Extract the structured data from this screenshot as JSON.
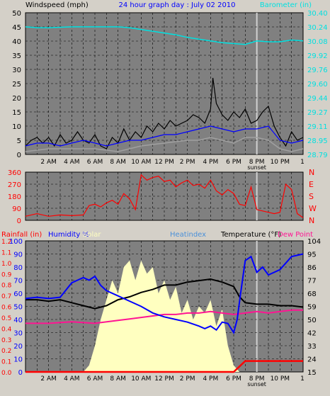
{
  "header": {
    "left_label": "Windspeed (mph)",
    "title": "24 hour graph day : July 02 2010",
    "right_label": "Barometer (in)"
  },
  "colors": {
    "background": "#d4d0c8",
    "plot_bg": "#808080",
    "grid": "#000000",
    "windspeed": "#000000",
    "wind_avg": "#0000ff",
    "gust_shadow": "#a0a0a0",
    "barometer": "#00e0e0",
    "wind_dir": "#ff0000",
    "humidity": "#0000ff",
    "solar": "#ffffc0",
    "heatindex": "#5b9bd5",
    "temperature": "#000000",
    "dewpoint": "#ff1493",
    "rainfall": "#ff0000"
  },
  "chart_data": [
    {
      "type": "line",
      "name": "wind-barometer",
      "left_axis": {
        "label": "Windspeed (mph)",
        "ticks": [
          0,
          5,
          10,
          15,
          20,
          25,
          30,
          35,
          40,
          45,
          50
        ],
        "range": [
          0,
          50
        ]
      },
      "right_axis": {
        "label": "Barometer (in)",
        "ticks": [
          "28.79",
          "28.95",
          "29.11",
          "29.27",
          "29.44",
          "29.60",
          "29.76",
          "29.92",
          "30.08",
          "30.24",
          "30.40"
        ],
        "range": [
          28.79,
          30.4
        ]
      },
      "x_ticks": [
        "2 AM",
        "4 AM",
        "6 AM",
        "8 AM",
        "10 AM",
        "12 PM",
        "2 PM",
        "4 PM",
        "6 PM",
        "8 PM",
        "10 PM"
      ],
      "x_end_label": "1",
      "sunset_label": "sunset",
      "x_range": [
        0,
        24
      ],
      "barometer": {
        "x": [
          0,
          1,
          2,
          4,
          6,
          8,
          9,
          10,
          11,
          12,
          13,
          14,
          15,
          16,
          17,
          18,
          19,
          20,
          21,
          22,
          23,
          24
        ],
        "values": [
          30.24,
          30.23,
          30.23,
          30.24,
          30.24,
          30.24,
          30.23,
          30.21,
          30.19,
          30.17,
          30.15,
          30.12,
          30.1,
          30.08,
          30.06,
          30.05,
          30.04,
          30.08,
          30.07,
          30.07,
          30.09,
          30.08
        ]
      },
      "windspeed": {
        "x": [
          0,
          0.5,
          1,
          1.5,
          2,
          2.5,
          3,
          3.5,
          4,
          4.5,
          5,
          5.5,
          6,
          6.5,
          7,
          7.5,
          8,
          8.5,
          9,
          9.5,
          10,
          10.5,
          11,
          11.5,
          12,
          12.5,
          13,
          13.5,
          14,
          14.5,
          15,
          15.5,
          16,
          16.2,
          16.5,
          17,
          17.5,
          18,
          18.5,
          19,
          19.5,
          20,
          20.5,
          21,
          21.5,
          22,
          22.5,
          23,
          23.5,
          24
        ],
        "values": [
          3,
          5,
          6,
          4,
          6,
          3,
          7,
          4,
          5,
          8,
          5,
          4,
          7,
          3,
          2,
          6,
          4,
          9,
          5,
          8,
          6,
          10,
          8,
          11,
          9,
          12,
          10,
          11,
          12,
          14,
          13,
          11,
          16,
          27,
          18,
          14,
          12,
          15,
          13,
          16,
          11,
          12,
          15,
          17,
          10,
          6,
          3,
          8,
          5,
          6
        ]
      },
      "wind_avg": {
        "x": [
          0,
          1,
          2,
          3,
          4,
          5,
          6,
          7,
          8,
          9,
          10,
          11,
          12,
          13,
          14,
          15,
          16,
          17,
          18,
          19,
          20,
          21,
          22,
          23,
          24
        ],
        "values": [
          3,
          4,
          4,
          3,
          4,
          5,
          4,
          3,
          4,
          5,
          5,
          6,
          7,
          7,
          8,
          9,
          10,
          9,
          8,
          9,
          9,
          10,
          5,
          4,
          5
        ]
      },
      "gust_shadow": {
        "x": [
          0,
          2,
          4,
          6,
          8,
          10,
          12,
          14,
          15,
          16,
          17,
          18,
          19,
          20,
          21,
          22,
          23,
          24
        ],
        "values": [
          1,
          2,
          2,
          2,
          1,
          3,
          4,
          5,
          5,
          6,
          5,
          4,
          6,
          6,
          5,
          2,
          1,
          2
        ]
      }
    },
    {
      "type": "scatter",
      "name": "wind-direction",
      "left_axis": {
        "ticks": [
          0,
          90,
          180,
          270,
          360
        ],
        "range": [
          0,
          360
        ]
      },
      "right_labels": [
        "N",
        "W",
        "S",
        "E",
        "N"
      ],
      "x_range": [
        0,
        24
      ],
      "wind_dir": {
        "x": [
          0,
          1,
          2,
          3,
          4,
          5,
          5.5,
          6,
          6.5,
          7,
          7.5,
          8,
          8.5,
          9,
          9.5,
          10,
          10.5,
          11,
          11.5,
          12,
          12.5,
          13,
          13.5,
          14,
          14.5,
          15,
          15.5,
          16,
          16.5,
          17,
          17.5,
          18,
          18.5,
          19,
          19.5,
          20,
          20.5,
          21,
          21.5,
          22,
          22.5,
          23,
          23.5,
          24
        ],
        "values": [
          30,
          50,
          30,
          40,
          35,
          40,
          110,
          120,
          100,
          130,
          150,
          120,
          200,
          160,
          80,
          340,
          300,
          320,
          330,
          290,
          300,
          250,
          280,
          300,
          260,
          270,
          240,
          300,
          220,
          190,
          230,
          200,
          120,
          110,
          250,
          80,
          70,
          60,
          50,
          60,
          270,
          230,
          50,
          20
        ]
      }
    },
    {
      "type": "line",
      "name": "temp-humidity",
      "rain_axis": {
        "label": "Rainfall (in)",
        "ticks": [
          "0.0",
          "0.1",
          "0.2",
          "0.3",
          "0.4",
          "0.5",
          "0.6",
          "0.7",
          "0.8",
          "0.9",
          "1.0",
          "1.1",
          "1.2"
        ]
      },
      "humidity_axis": {
        "label": "Humidity %",
        "ticks": [
          0,
          10,
          20,
          30,
          40,
          50,
          60,
          70,
          80,
          90,
          100
        ],
        "range": [
          0,
          100
        ]
      },
      "temp_axis": {
        "label": "Temperature (°F)",
        "ticks": [
          15,
          24,
          33,
          42,
          50,
          59,
          68,
          77,
          86,
          95,
          104
        ],
        "range": [
          15,
          104
        ]
      },
      "legend": [
        "Humidity %",
        "Solar",
        "Heatindex",
        "Temperature (°F)",
        "Dew Point"
      ],
      "x_range": [
        0,
        24
      ],
      "humidity": {
        "x": [
          0,
          1,
          2,
          3,
          4,
          4.5,
          5,
          5.5,
          6,
          6.5,
          7,
          8,
          9,
          10,
          11,
          12,
          13,
          14,
          15,
          15.5,
          16,
          16.5,
          17,
          17.5,
          18,
          18.3,
          18.6,
          19,
          19.5,
          20,
          20.5,
          21,
          22,
          23,
          24
        ],
        "values": [
          56,
          57,
          56,
          57,
          68,
          70,
          72,
          70,
          73,
          66,
          62,
          58,
          54,
          50,
          45,
          42,
          40,
          38,
          35,
          33,
          35,
          32,
          38,
          37,
          30,
          40,
          60,
          85,
          88,
          76,
          80,
          74,
          78,
          88,
          90
        ]
      },
      "temperature": {
        "x": [
          0,
          1,
          2,
          3,
          4,
          5,
          6,
          7,
          8,
          9,
          10,
          11,
          12,
          13,
          14,
          15,
          16,
          17,
          18,
          18.5,
          19,
          20,
          21,
          22,
          23,
          24
        ],
        "values": [
          64,
          64,
          63,
          64,
          62,
          60,
          58,
          60,
          64,
          66,
          69,
          71,
          74,
          74,
          76,
          77,
          78,
          76,
          73,
          66,
          62,
          61,
          61,
          60,
          60,
          59
        ]
      },
      "dewpoint": {
        "x": [
          0,
          2,
          4,
          6,
          8,
          9,
          10,
          11,
          12,
          13,
          14,
          15,
          16,
          17,
          18,
          19,
          20,
          21,
          22,
          23,
          24
        ],
        "values": [
          48,
          48,
          49,
          48,
          50,
          51,
          52,
          53,
          54,
          54,
          55,
          55,
          56,
          55,
          54,
          55,
          56,
          55,
          56,
          57,
          57
        ]
      },
      "solar": {
        "x": [
          0,
          5,
          5.5,
          6,
          6.5,
          7,
          7.5,
          8,
          8.5,
          9,
          9.5,
          10,
          10.5,
          11,
          11.5,
          12,
          12.5,
          13,
          13.5,
          14,
          14.5,
          15,
          15.5,
          16,
          16.5,
          17,
          17.5,
          18,
          18.5,
          19,
          24
        ],
        "values": [
          0,
          0,
          5,
          20,
          40,
          55,
          70,
          60,
          80,
          85,
          70,
          85,
          75,
          80,
          60,
          70,
          55,
          65,
          45,
          55,
          40,
          50,
          45,
          55,
          35,
          48,
          20,
          5,
          0,
          0,
          0
        ]
      },
      "rainfall": {
        "x": [
          0,
          18,
          19,
          20,
          24
        ],
        "values": [
          0,
          0,
          0.1,
          0.1,
          0.1
        ]
      }
    }
  ]
}
